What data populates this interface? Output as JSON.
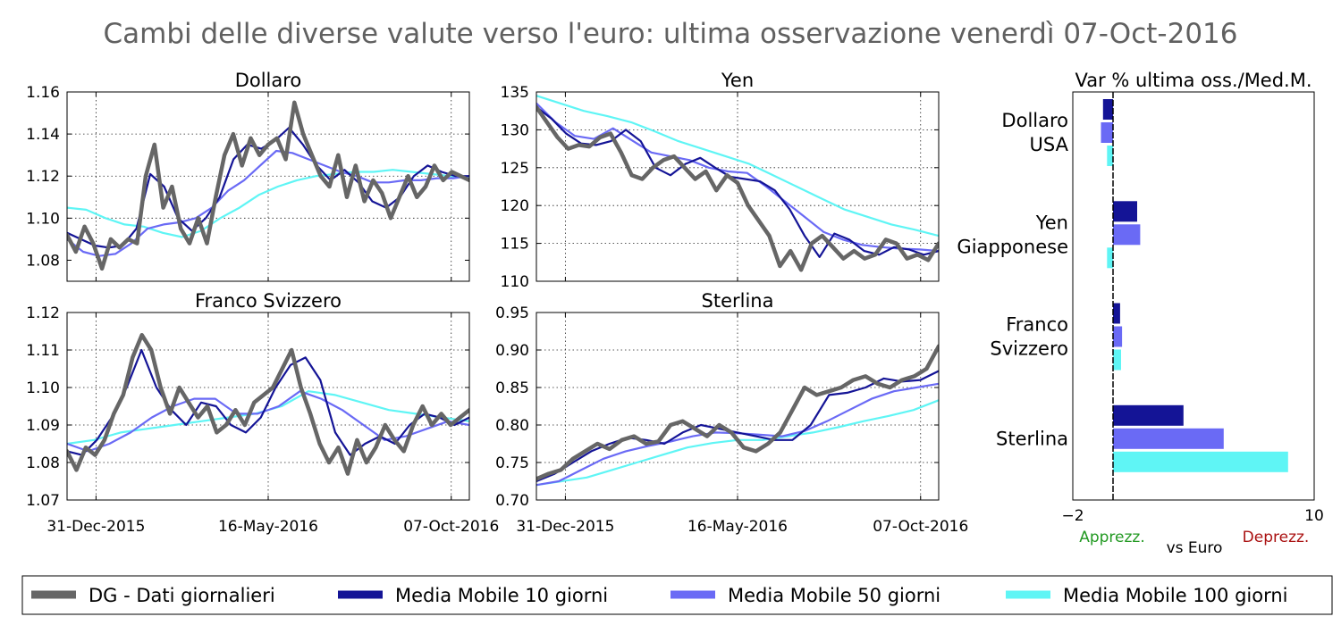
{
  "figure": {
    "title": "Cambi delle diverse valute verso l'euro: ultima osservazione venerdì 07-Oct-2016"
  },
  "colors": {
    "daily": "#666666",
    "ma10": "#141496",
    "ma50": "#6a6af5",
    "ma100": "#5ff5f5",
    "appreciation": "#229922",
    "depreciation": "#aa1111",
    "title": "#606060"
  },
  "legend": [
    {
      "key": "daily",
      "label": "DG - Dati giornalieri"
    },
    {
      "key": "ma10",
      "label": "Media Mobile 10 giorni"
    },
    {
      "key": "ma50",
      "label": "Media Mobile 50 giorni"
    },
    {
      "key": "ma100",
      "label": "Media Mobile 100 giorni"
    }
  ],
  "chart_data": [
    {
      "type": "line",
      "title": "Dollaro",
      "x_ticks": [
        "31-Dec-2015",
        "16-May-2016",
        "07-Oct-2016"
      ],
      "ylim": [
        1.07,
        1.16
      ],
      "y_ticks": [
        "1.08",
        "1.10",
        "1.12",
        "1.14",
        "1.16"
      ],
      "grid": true,
      "series": [
        {
          "key": "daily",
          "values": [
            1.092,
            1.084,
            1.096,
            1.088,
            1.076,
            1.09,
            1.086,
            1.09,
            1.088,
            1.12,
            1.135,
            1.105,
            1.115,
            1.095,
            1.088,
            1.1,
            1.088,
            1.11,
            1.13,
            1.14,
            1.125,
            1.138,
            1.13,
            1.135,
            1.138,
            1.128,
            1.155,
            1.14,
            1.13,
            1.12,
            1.115,
            1.13,
            1.11,
            1.125,
            1.108,
            1.118,
            1.112,
            1.1,
            1.11,
            1.12,
            1.11,
            1.115,
            1.125,
            1.118,
            1.122,
            1.12,
            1.118
          ]
        },
        {
          "key": "ma10",
          "values": [
            1.093,
            1.09,
            1.087,
            1.086,
            1.087,
            1.095,
            1.121,
            1.115,
            1.1,
            1.094,
            1.1,
            1.11,
            1.128,
            1.135,
            1.133,
            1.137,
            1.143,
            1.135,
            1.125,
            1.118,
            1.123,
            1.117,
            1.108,
            1.105,
            1.11,
            1.12,
            1.125,
            1.122,
            1.12,
            1.12
          ]
        },
        {
          "key": "ma50",
          "values": [
            1.09,
            1.084,
            1.082,
            1.083,
            1.088,
            1.095,
            1.097,
            1.098,
            1.1,
            1.105,
            1.113,
            1.118,
            1.125,
            1.132,
            1.131,
            1.128,
            1.125,
            1.122,
            1.12,
            1.117,
            1.117,
            1.118,
            1.118,
            1.119,
            1.119,
            1.12
          ]
        },
        {
          "key": "ma100",
          "values": [
            1.105,
            1.104,
            1.1,
            1.097,
            1.096,
            1.093,
            1.091,
            1.094,
            1.1,
            1.105,
            1.111,
            1.115,
            1.118,
            1.12,
            1.121,
            1.122,
            1.122,
            1.123,
            1.122,
            1.121,
            1.12,
            1.119
          ]
        }
      ]
    },
    {
      "type": "line",
      "title": "Yen",
      "x_ticks": [
        "31-Dec-2015",
        "16-May-2016",
        "07-Oct-2016"
      ],
      "ylim": [
        110,
        135
      ],
      "y_ticks": [
        "110",
        "115",
        "120",
        "125",
        "130",
        "135"
      ],
      "grid": true,
      "series": [
        {
          "key": "daily",
          "values": [
            133,
            131,
            129,
            127.5,
            128,
            127.8,
            129,
            129.5,
            127,
            124,
            123.5,
            125,
            126,
            126.5,
            125,
            123.5,
            124.5,
            122,
            124,
            123,
            120,
            118,
            116,
            112,
            114,
            111.5,
            115,
            116,
            114.5,
            113,
            114,
            113,
            113.5,
            115.5,
            115,
            113,
            113.5,
            112.8,
            115
          ]
        },
        {
          "key": "ma10",
          "values": [
            133,
            131.5,
            129.5,
            128.2,
            128,
            128.5,
            130,
            128.5,
            125,
            124,
            125.5,
            126.3,
            125,
            123.8,
            123.5,
            123.2,
            122,
            119.5,
            116,
            113.2,
            116.3,
            115.5,
            114,
            113.5,
            114.5,
            114.2,
            113.5,
            114
          ]
        },
        {
          "key": "ma50",
          "values": [
            133.5,
            131,
            129.2,
            128.8,
            130.2,
            128.6,
            127,
            126.5,
            126,
            125,
            124.5,
            124.3,
            122.5,
            120.5,
            118.5,
            116.5,
            115.5,
            114.8,
            114.5,
            114.3,
            114.2,
            114
          ]
        },
        {
          "key": "ma100",
          "values": [
            134.5,
            133.5,
            132.5,
            131.8,
            131,
            129.8,
            128.5,
            127.5,
            126.5,
            125.5,
            124,
            122.5,
            121,
            119.5,
            118.5,
            117.5,
            116.8,
            116
          ]
        }
      ]
    },
    {
      "type": "line",
      "title": "Franco Svizzero",
      "x_ticks": [
        "31-Dec-2015",
        "16-May-2016",
        "07-Oct-2016"
      ],
      "ylim": [
        1.07,
        1.12
      ],
      "y_ticks": [
        "1.07",
        "1.08",
        "1.09",
        "1.10",
        "1.11",
        "1.12"
      ],
      "grid": true,
      "series": [
        {
          "key": "daily",
          "values": [
            1.083,
            1.078,
            1.084,
            1.082,
            1.086,
            1.093,
            1.098,
            1.108,
            1.114,
            1.11,
            1.1,
            1.093,
            1.1,
            1.096,
            1.092,
            1.095,
            1.088,
            1.09,
            1.094,
            1.09,
            1.096,
            1.098,
            1.1,
            1.105,
            1.11,
            1.1,
            1.093,
            1.085,
            1.08,
            1.084,
            1.077,
            1.086,
            1.08,
            1.084,
            1.09,
            1.086,
            1.083,
            1.09,
            1.095,
            1.09,
            1.093,
            1.09,
            1.092,
            1.094
          ]
        },
        {
          "key": "ma10",
          "values": [
            1.083,
            1.082,
            1.086,
            1.092,
            1.1,
            1.11,
            1.1,
            1.094,
            1.09,
            1.096,
            1.095,
            1.09,
            1.088,
            1.092,
            1.1,
            1.106,
            1.108,
            1.102,
            1.088,
            1.082,
            1.085,
            1.087,
            1.085,
            1.09,
            1.093,
            1.092,
            1.09,
            1.092
          ]
        },
        {
          "key": "ma50",
          "values": [
            1.085,
            1.083,
            1.085,
            1.088,
            1.092,
            1.095,
            1.097,
            1.097,
            1.093,
            1.093,
            1.095,
            1.099,
            1.097,
            1.094,
            1.09,
            1.086,
            1.087,
            1.089,
            1.091,
            1.09
          ]
        },
        {
          "key": "ma100",
          "values": [
            1.085,
            1.086,
            1.088,
            1.089,
            1.09,
            1.091,
            1.092,
            1.093,
            1.095,
            1.099,
            1.098,
            1.096,
            1.094,
            1.093,
            1.092,
            1.091
          ]
        }
      ]
    },
    {
      "type": "line",
      "title": "Sterlina",
      "x_ticks": [
        "31-Dec-2015",
        "16-May-2016",
        "07-Oct-2016"
      ],
      "ylim": [
        0.7,
        0.95
      ],
      "y_ticks": [
        "0.70",
        "0.75",
        "0.80",
        "0.85",
        "0.90",
        "0.95"
      ],
      "grid": true,
      "series": [
        {
          "key": "daily",
          "values": [
            0.728,
            0.735,
            0.74,
            0.755,
            0.765,
            0.775,
            0.768,
            0.78,
            0.785,
            0.775,
            0.778,
            0.8,
            0.805,
            0.795,
            0.785,
            0.8,
            0.79,
            0.77,
            0.765,
            0.775,
            0.79,
            0.82,
            0.85,
            0.84,
            0.845,
            0.85,
            0.86,
            0.865,
            0.855,
            0.85,
            0.86,
            0.865,
            0.875,
            0.905
          ]
        },
        {
          "key": "ma10",
          "values": [
            0.725,
            0.735,
            0.75,
            0.765,
            0.775,
            0.783,
            0.78,
            0.775,
            0.79,
            0.8,
            0.795,
            0.79,
            0.785,
            0.78,
            0.78,
            0.8,
            0.84,
            0.843,
            0.85,
            0.862,
            0.858,
            0.86,
            0.872
          ]
        },
        {
          "key": "ma50",
          "values": [
            0.72,
            0.725,
            0.74,
            0.755,
            0.765,
            0.772,
            0.778,
            0.785,
            0.79,
            0.789,
            0.787,
            0.785,
            0.792,
            0.805,
            0.82,
            0.835,
            0.845,
            0.85,
            0.855
          ]
        },
        {
          "key": "ma100",
          "values": [
            0.72,
            0.725,
            0.73,
            0.74,
            0.75,
            0.76,
            0.77,
            0.776,
            0.78,
            0.78,
            0.785,
            0.79,
            0.797,
            0.805,
            0.812,
            0.82,
            0.833
          ]
        }
      ]
    },
    {
      "type": "bar",
      "orientation": "horizontal",
      "title": "Var % ultima oss./Med.M.",
      "xlim": [
        -2,
        10
      ],
      "x_ticks": [
        "−2",
        "10"
      ],
      "xlabel": "vs Euro",
      "left_note": "Apprezz.",
      "right_note": "Deprezz.",
      "categories": [
        [
          "Dollaro",
          "USA"
        ],
        [
          "Yen",
          "Giapponese"
        ],
        [
          "Franco",
          "Svizzero"
        ],
        [
          "Sterlina"
        ]
      ],
      "series": [
        {
          "key": "ma10",
          "values": [
            -0.5,
            1.2,
            0.35,
            3.5
          ]
        },
        {
          "key": "ma50",
          "values": [
            -0.6,
            1.35,
            0.45,
            5.5
          ]
        },
        {
          "key": "ma100",
          "values": [
            -0.3,
            -0.3,
            0.4,
            8.7
          ]
        }
      ]
    }
  ]
}
